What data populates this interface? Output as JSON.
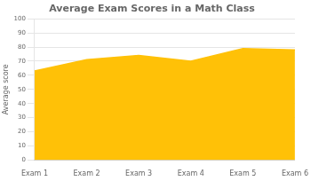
{
  "chart_data": {
    "type": "area",
    "title": "Average Exam Scores in a Math Class",
    "ylabel": "Average score",
    "categories": [
      "Exam 1",
      "Exam 2",
      "Exam 3",
      "Exam 4",
      "Exam 5",
      "Exam 6"
    ],
    "values": [
      63,
      71,
      74,
      70,
      79,
      78
    ],
    "color": "#FFC107",
    "ylim": [
      0,
      100
    ],
    "yticks": [
      0,
      10,
      20,
      30,
      40,
      50,
      60,
      70,
      80,
      90,
      100
    ],
    "grid": true
  }
}
